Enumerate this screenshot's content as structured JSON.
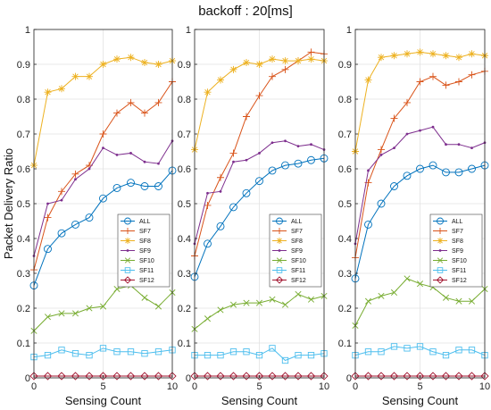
{
  "title": "backoff : 20[ms]",
  "chart_data": [
    {
      "type": "line",
      "x": [
        0,
        1,
        2,
        3,
        4,
        5,
        6,
        7,
        8,
        9,
        10
      ],
      "xlabel": "Sensing Count",
      "ylabel": "Packet Delivery Ratio",
      "xlim": [
        0,
        10
      ],
      "ylim": [
        0,
        1
      ],
      "xticks": [
        "0",
        "5",
        "10"
      ],
      "yticks": [
        "0",
        "0.1",
        "0.2",
        "0.3",
        "0.4",
        "0.5",
        "0.6",
        "0.7",
        "0.8",
        "0.9",
        "1"
      ],
      "grid": true,
      "legend_position": "bottom-right",
      "series": [
        {
          "name": "ALL",
          "color": "#0072BD",
          "marker": "circle",
          "values": [
            0.265,
            0.37,
            0.415,
            0.44,
            0.46,
            0.515,
            0.545,
            0.56,
            0.55,
            0.55,
            0.595
          ]
        },
        {
          "name": "SF7",
          "color": "#D95319",
          "marker": "plus",
          "values": [
            0.31,
            0.46,
            0.535,
            0.585,
            0.61,
            0.7,
            0.76,
            0.79,
            0.76,
            0.79,
            0.85
          ]
        },
        {
          "name": "SF8",
          "color": "#EDB120",
          "marker": "star",
          "values": [
            0.61,
            0.82,
            0.83,
            0.865,
            0.865,
            0.9,
            0.915,
            0.92,
            0.905,
            0.9,
            0.91
          ]
        },
        {
          "name": "SF9",
          "color": "#7E2F8E",
          "marker": "dot",
          "values": [
            0.35,
            0.5,
            0.51,
            0.57,
            0.6,
            0.66,
            0.64,
            0.645,
            0.62,
            0.615,
            0.68
          ]
        },
        {
          "name": "SF10",
          "color": "#77AC30",
          "marker": "x",
          "values": [
            0.135,
            0.175,
            0.185,
            0.185,
            0.2,
            0.205,
            0.255,
            0.265,
            0.23,
            0.205,
            0.245
          ]
        },
        {
          "name": "SF11",
          "color": "#4DBEEE",
          "marker": "square",
          "values": [
            0.06,
            0.065,
            0.08,
            0.07,
            0.065,
            0.085,
            0.075,
            0.075,
            0.07,
            0.075,
            0.08
          ]
        },
        {
          "name": "SF12",
          "color": "#A2142F",
          "marker": "diamond",
          "values": [
            0.005,
            0.005,
            0.005,
            0.005,
            0.005,
            0.005,
            0.005,
            0.005,
            0.005,
            0.005,
            0.005
          ]
        }
      ]
    },
    {
      "type": "line",
      "x": [
        0,
        1,
        2,
        3,
        4,
        5,
        6,
        7,
        8,
        9,
        10
      ],
      "xlabel": "Sensing Count",
      "ylabel": "",
      "xlim": [
        0,
        10
      ],
      "ylim": [
        0,
        1
      ],
      "xticks": [
        "0",
        "5",
        "10"
      ],
      "yticks": [
        "0",
        "0.1",
        "0.2",
        "0.3",
        "0.4",
        "0.5",
        "0.6",
        "0.7",
        "0.8",
        "0.9",
        "1"
      ],
      "grid": true,
      "legend_position": "bottom-right",
      "series": [
        {
          "name": "ALL",
          "color": "#0072BD",
          "marker": "circle",
          "values": [
            0.29,
            0.385,
            0.435,
            0.49,
            0.53,
            0.565,
            0.595,
            0.61,
            0.615,
            0.625,
            0.63
          ]
        },
        {
          "name": "SF7",
          "color": "#D95319",
          "marker": "plus",
          "values": [
            0.35,
            0.495,
            0.575,
            0.645,
            0.75,
            0.81,
            0.865,
            0.885,
            0.91,
            0.935,
            0.93
          ]
        },
        {
          "name": "SF8",
          "color": "#EDB120",
          "marker": "star",
          "values": [
            0.655,
            0.82,
            0.855,
            0.885,
            0.905,
            0.9,
            0.915,
            0.91,
            0.91,
            0.915,
            0.91
          ]
        },
        {
          "name": "SF9",
          "color": "#7E2F8E",
          "marker": "dot",
          "values": [
            0.385,
            0.53,
            0.535,
            0.62,
            0.625,
            0.645,
            0.675,
            0.68,
            0.665,
            0.67,
            0.655
          ]
        },
        {
          "name": "SF10",
          "color": "#77AC30",
          "marker": "x",
          "values": [
            0.14,
            0.17,
            0.195,
            0.21,
            0.215,
            0.215,
            0.225,
            0.21,
            0.24,
            0.225,
            0.235
          ]
        },
        {
          "name": "SF11",
          "color": "#4DBEEE",
          "marker": "square",
          "values": [
            0.065,
            0.065,
            0.065,
            0.075,
            0.075,
            0.065,
            0.085,
            0.05,
            0.065,
            0.065,
            0.07
          ]
        },
        {
          "name": "SF12",
          "color": "#A2142F",
          "marker": "diamond",
          "values": [
            0.005,
            0.005,
            0.005,
            0.005,
            0.005,
            0.005,
            0.005,
            0.005,
            0.005,
            0.005,
            0.005
          ]
        }
      ]
    },
    {
      "type": "line",
      "x": [
        0,
        1,
        2,
        3,
        4,
        5,
        6,
        7,
        8,
        9,
        10
      ],
      "xlabel": "Sensing Count",
      "ylabel": "",
      "xlim": [
        0,
        10
      ],
      "ylim": [
        0,
        1
      ],
      "xticks": [
        "0",
        "5",
        "10"
      ],
      "yticks": [
        "0",
        "0.1",
        "0.2",
        "0.3",
        "0.4",
        "0.5",
        "0.6",
        "0.7",
        "0.8",
        "0.9",
        "1"
      ],
      "grid": true,
      "legend_position": "bottom-right",
      "series": [
        {
          "name": "ALL",
          "color": "#0072BD",
          "marker": "circle",
          "values": [
            0.285,
            0.44,
            0.5,
            0.55,
            0.58,
            0.6,
            0.61,
            0.59,
            0.59,
            0.6,
            0.61
          ]
        },
        {
          "name": "SF7",
          "color": "#D95319",
          "marker": "plus",
          "values": [
            0.345,
            0.56,
            0.655,
            0.745,
            0.79,
            0.85,
            0.865,
            0.84,
            0.85,
            0.87,
            0.88
          ]
        },
        {
          "name": "SF8",
          "color": "#EDB120",
          "marker": "star",
          "values": [
            0.65,
            0.855,
            0.92,
            0.925,
            0.93,
            0.935,
            0.93,
            0.925,
            0.92,
            0.93,
            0.925
          ]
        },
        {
          "name": "SF9",
          "color": "#7E2F8E",
          "marker": "dot",
          "values": [
            0.385,
            0.595,
            0.64,
            0.66,
            0.7,
            0.71,
            0.72,
            0.67,
            0.67,
            0.66,
            0.675
          ]
        },
        {
          "name": "SF10",
          "color": "#77AC30",
          "marker": "x",
          "values": [
            0.15,
            0.22,
            0.235,
            0.245,
            0.285,
            0.27,
            0.26,
            0.23,
            0.22,
            0.22,
            0.255
          ]
        },
        {
          "name": "SF11",
          "color": "#4DBEEE",
          "marker": "square",
          "values": [
            0.065,
            0.075,
            0.075,
            0.09,
            0.085,
            0.09,
            0.075,
            0.065,
            0.08,
            0.08,
            0.065
          ]
        },
        {
          "name": "SF12",
          "color": "#A2142F",
          "marker": "diamond",
          "values": [
            0.005,
            0.005,
            0.005,
            0.005,
            0.005,
            0.005,
            0.005,
            0.005,
            0.005,
            0.005,
            0.005
          ]
        }
      ]
    }
  ]
}
